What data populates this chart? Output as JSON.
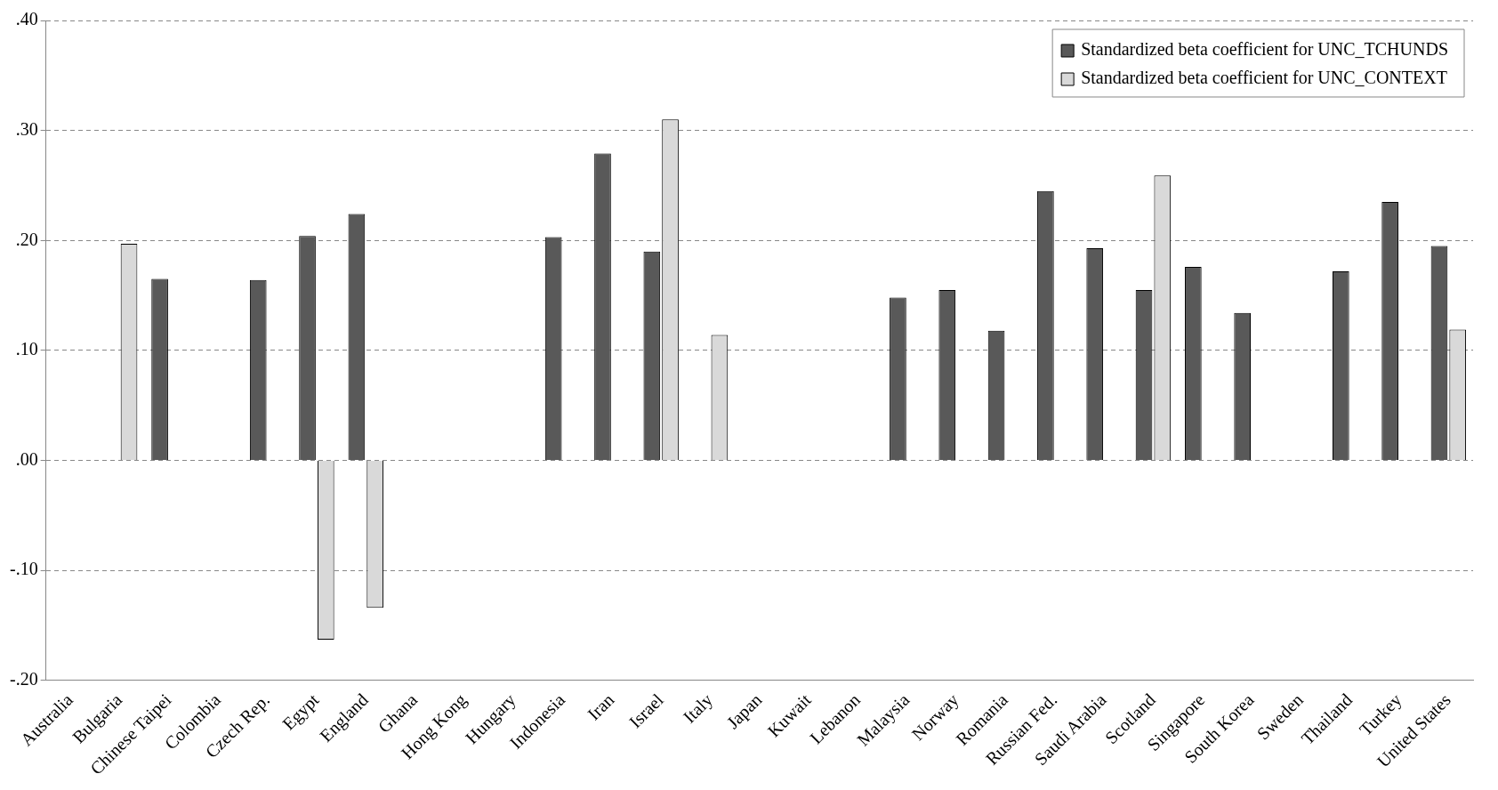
{
  "chart_data": {
    "type": "bar",
    "categories": [
      "Australia",
      "Bulgaria",
      "Chinese Taipei",
      "Colombia",
      "Czech Rep.",
      "Egypt",
      "England",
      "Ghana",
      "Hong Kong",
      "Hungary",
      "Indonesia",
      "Iran",
      "Israel",
      "Italy",
      "Japan",
      "Kuwait",
      "Lebanon",
      "Malaysia",
      "Norway",
      "Romania",
      "Russian Fed.",
      "Saudi Arabia",
      "Scotland",
      "Singapore",
      "South Korea",
      "Sweden",
      "Thailand",
      "Turkey",
      "United States"
    ],
    "series": [
      {
        "name": "Standardized beta coefficient for UNC_TCHUNDS",
        "color": "#595959",
        "values": [
          null,
          null,
          0.165,
          null,
          0.164,
          0.204,
          0.224,
          null,
          null,
          null,
          0.203,
          0.279,
          0.19,
          null,
          null,
          null,
          null,
          0.148,
          0.155,
          0.118,
          0.245,
          0.193,
          0.155,
          0.176,
          0.134,
          null,
          0.172,
          0.235,
          0.195
        ]
      },
      {
        "name": "Standardized beta coefficient for UNC_CONTEXT",
        "color": "#d9d9d9",
        "values": [
          null,
          0.197,
          null,
          null,
          null,
          -0.163,
          -0.134,
          null,
          null,
          null,
          null,
          null,
          0.31,
          0.114,
          null,
          null,
          null,
          null,
          null,
          null,
          null,
          null,
          0.259,
          null,
          null,
          null,
          null,
          null,
          0.119
        ]
      }
    ],
    "ylim": [
      -0.2,
      0.4
    ],
    "yticks": [
      {
        "value": -0.2,
        "label": "-.20"
      },
      {
        "value": -0.1,
        "label": "-.10"
      },
      {
        "value": 0,
        "label": ".00"
      },
      {
        "value": 0.1,
        "label": ".10"
      },
      {
        "value": 0.2,
        "label": ".20"
      },
      {
        "value": 0.3,
        "label": ".30"
      },
      {
        "value": 0.4,
        "label": ".40"
      }
    ],
    "grid": "y",
    "legend": "top right"
  }
}
